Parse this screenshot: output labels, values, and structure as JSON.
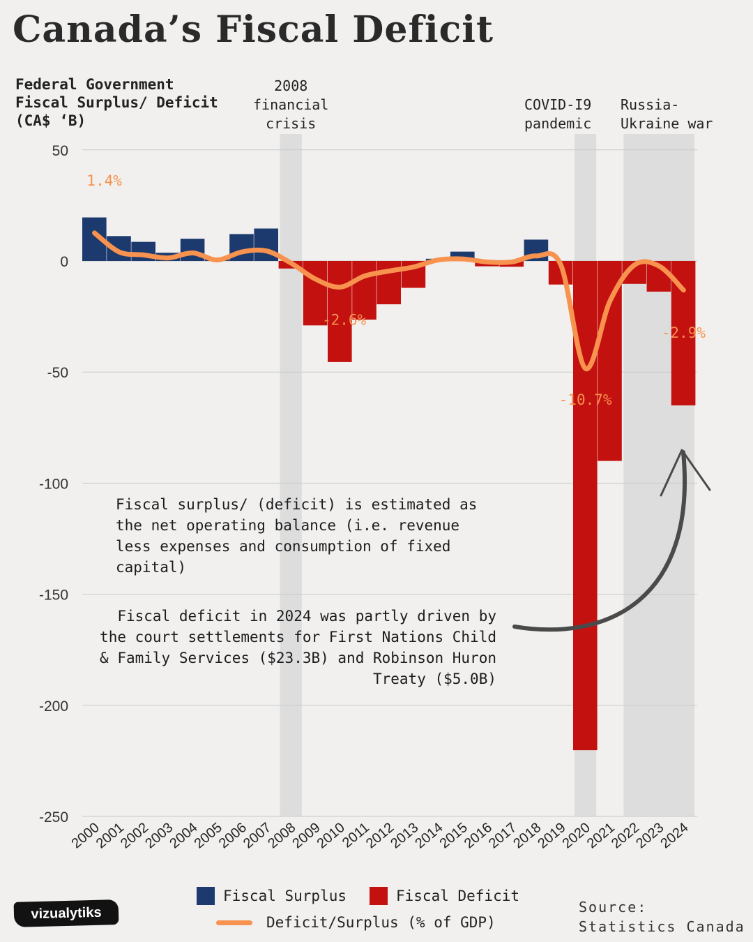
{
  "title": "Canada’s Fiscal Deficit",
  "y_axis_label": "Federal Government Fiscal Surplus/ Deficit (CA$ ‘B)",
  "notes": {
    "definition": "Fiscal surplus/ (deficit) is estimated as the net operating balance (i.e. revenue less expenses and consumption of fixed capital)",
    "explanation": "Fiscal deficit in 2024 was partly driven by the court settlements for First Nations Child & Family Services ($23.3B) and Robinson Huron Treaty ($5.0B)"
  },
  "legend": {
    "surplus": "Fiscal Surplus",
    "deficit": "Fiscal Deficit",
    "line": "Deficit/Surplus (% of GDP)"
  },
  "source_lines": [
    "Source:",
    "Statistics Canada"
  ],
  "brand": "vizualytiks",
  "colors": {
    "surplus": "#1c3a6e",
    "deficit": "#c3110f",
    "line": "#f7924f",
    "shade": "#d9d9d9",
    "arrow": "#4a4a4a"
  },
  "chart_data": {
    "type": "bar",
    "categories": [
      "2000",
      "2001",
      "2002",
      "2003",
      "2004",
      "2005",
      "2006",
      "2007",
      "2008",
      "2009",
      "2010",
      "2011",
      "2012",
      "2013",
      "2014",
      "2015",
      "2016",
      "2017",
      "2018",
      "2019",
      "2020",
      "2021",
      "2022",
      "2023",
      "2024"
    ],
    "series": [
      {
        "name": "Fiscal Surplus / Deficit",
        "values": [
          19.6,
          11.2,
          8.6,
          3.7,
          10.0,
          0.9,
          12.1,
          14.6,
          -3.4,
          -29.0,
          -45.5,
          -26.4,
          -19.5,
          -12.1,
          1.0,
          4.2,
          -2.4,
          -2.6,
          9.6,
          -10.6,
          -220.2,
          -90.0,
          -10.3,
          -13.8,
          -65.0
        ]
      },
      {
        "name": "Deficit/Surplus (% of GDP)",
        "values": [
          1.4,
          0.9,
          0.6,
          0.3,
          0.8,
          0.1,
          0.9,
          1.0,
          -0.2,
          -1.8,
          -2.6,
          -1.5,
          -1.0,
          -0.6,
          0.1,
          0.2,
          -0.1,
          -0.1,
          0.5,
          -0.4,
          -10.7,
          -4.0,
          -0.4,
          -0.5,
          -2.9
        ]
      }
    ],
    "line_labels": [
      {
        "year": "2000",
        "text": "1.4%"
      },
      {
        "year": "2010",
        "text": "-2.6%"
      },
      {
        "year": "2020",
        "text": "-10.7%"
      },
      {
        "year": "2024",
        "text": "-2.9%"
      }
    ],
    "shaded_periods": [
      {
        "label": "2008 financial crisis",
        "start": "2008",
        "end": "2008"
      },
      {
        "label": "COVID-I9 pandemic",
        "start": "2020",
        "end": "2020"
      },
      {
        "label": "Russia- Ukraine war",
        "start": "2022",
        "end": "2024"
      }
    ],
    "y_ticks": [
      50,
      0,
      -50,
      -100,
      -150,
      -200,
      -250
    ],
    "ylim": [
      -250,
      50
    ],
    "grid": true
  }
}
